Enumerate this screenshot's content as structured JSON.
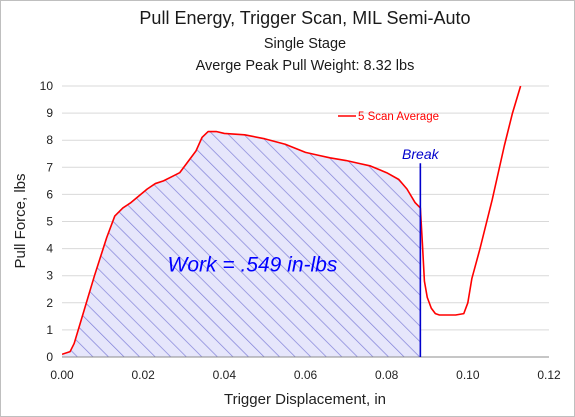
{
  "chart_data": {
    "type": "area",
    "title": "Pull Energy,  Trigger Scan,  MIL Semi-Auto",
    "subtitle": "Single Stage",
    "subtitle2": "Averge Peak Pull Weight: 8.32 lbs",
    "xlabel": "Trigger Displacement, in",
    "ylabel": "Pull Force, lbs",
    "xlim": [
      0,
      0.12
    ],
    "ylim": [
      0,
      10
    ],
    "x_ticks": [
      "0.00",
      "0.02",
      "0.04",
      "0.06",
      "0.08",
      "0.10",
      "0.12"
    ],
    "y_ticks": [
      "0",
      "1",
      "2",
      "3",
      "4",
      "5",
      "6",
      "7",
      "8",
      "9",
      "10"
    ],
    "grid": "horizontal",
    "legend": "top-right",
    "series": [
      {
        "name": "5 Scan Average",
        "color": "#ff0000",
        "x": [
          0.0,
          0.002,
          0.003,
          0.005,
          0.008,
          0.011,
          0.013,
          0.015,
          0.017,
          0.019,
          0.021,
          0.023,
          0.025,
          0.027,
          0.029,
          0.031,
          0.033,
          0.0345,
          0.036,
          0.038,
          0.04,
          0.045,
          0.05,
          0.055,
          0.06,
          0.063,
          0.066,
          0.07,
          0.073,
          0.076,
          0.08,
          0.083,
          0.085,
          0.087,
          0.0883,
          0.0888,
          0.0893,
          0.09,
          0.091,
          0.092,
          0.093,
          0.095,
          0.097,
          0.099,
          0.1,
          0.101,
          0.103,
          0.106,
          0.109,
          0.111,
          0.113
        ],
        "y": [
          0.1,
          0.2,
          0.5,
          1.5,
          3.0,
          4.4,
          5.2,
          5.5,
          5.7,
          5.95,
          6.2,
          6.4,
          6.5,
          6.65,
          6.8,
          7.2,
          7.6,
          8.1,
          8.32,
          8.32,
          8.25,
          8.2,
          8.05,
          7.85,
          7.55,
          7.45,
          7.35,
          7.25,
          7.15,
          7.05,
          6.8,
          6.55,
          6.2,
          5.7,
          5.5,
          4.2,
          2.8,
          2.2,
          1.8,
          1.6,
          1.55,
          1.55,
          1.55,
          1.6,
          2.0,
          2.9,
          4.0,
          5.8,
          7.8,
          9.0,
          10.0
        ]
      }
    ],
    "shaded_area": {
      "x_start": 0.0,
      "x_end": 0.0883,
      "fill": "#b8b8ee",
      "hatch_color": "#7a7ad6"
    },
    "annotations": [
      {
        "id": "break",
        "text": "Break",
        "x": 0.0883,
        "color": "#0000cc",
        "type": "vertical-line"
      },
      {
        "id": "work",
        "text": "Work = .549 in-lbs",
        "x": 0.026,
        "y": 3.15,
        "color": "#0000ff"
      }
    ]
  }
}
